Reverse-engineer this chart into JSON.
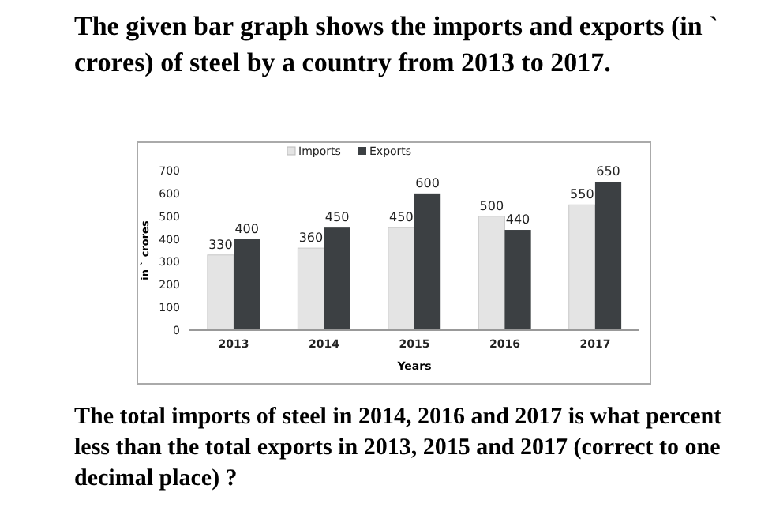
{
  "chart_data": {
    "type": "bar",
    "title": "The given bar graph shows the imports and exports (in ` crores) of steel by a country from 2013 to 2017.",
    "xlabel": "Years",
    "ylabel": "in ` crores",
    "categories": [
      "2013",
      "2014",
      "2015",
      "2016",
      "2017"
    ],
    "series": [
      {
        "name": "Imports",
        "color": "#e4e4e4",
        "values": [
          330,
          360,
          450,
          500,
          550
        ]
      },
      {
        "name": "Exports",
        "color": "#3c4043",
        "values": [
          400,
          450,
          600,
          440,
          650
        ]
      }
    ],
    "ylim": [
      0,
      700
    ],
    "yticks": [
      0,
      100,
      200,
      300,
      400,
      500,
      600,
      700
    ],
    "data_labels": true,
    "legend": "top",
    "grid": false,
    "annotations": [
      "The total imports of steel in 2014, 2016 and 2017 is what percent less than the total exports in 2013, 2015 and 2017 (correct to one decimal place) ?"
    ]
  }
}
